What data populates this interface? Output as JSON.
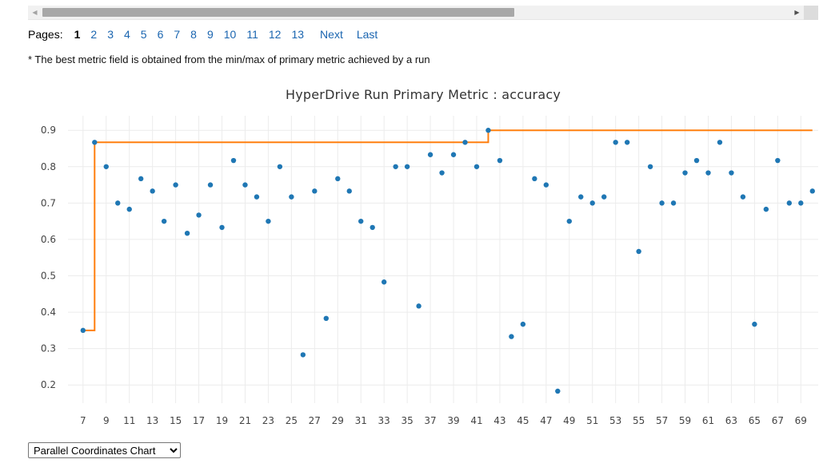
{
  "pager": {
    "label": "Pages:",
    "current": "1",
    "pages": [
      "2",
      "3",
      "4",
      "5",
      "6",
      "7",
      "8",
      "9",
      "10",
      "11",
      "12",
      "13"
    ],
    "next": "Next",
    "last": "Last"
  },
  "note": "* The best metric field is obtained from the min/max of primary metric achieved by a run",
  "chart_select": {
    "value": "Parallel Coordinates Chart",
    "options": [
      "Parallel Coordinates Chart"
    ]
  },
  "colors": {
    "points": "#1f77b4",
    "best_line": "#ff7f0e",
    "link": "#1a65b0"
  },
  "chart_data": {
    "type": "scatter",
    "title": "HyperDrive Run Primary Metric : accuracy",
    "xlabel": "",
    "ylabel": "",
    "xlim": [
      5.7,
      70.5
    ],
    "ylim": [
      0.15,
      0.94
    ],
    "x_ticks": [
      7,
      9,
      11,
      13,
      15,
      17,
      19,
      21,
      23,
      25,
      27,
      29,
      31,
      33,
      35,
      37,
      39,
      41,
      43,
      45,
      47,
      49,
      51,
      53,
      55,
      57,
      59,
      61,
      63,
      65,
      67,
      69
    ],
    "y_ticks": [
      0.2,
      0.3,
      0.4,
      0.5,
      0.6,
      0.7,
      0.8,
      0.9
    ],
    "grid": true,
    "series": [
      {
        "type": "scatter",
        "x": [
          7,
          8,
          9,
          10,
          11,
          12,
          13,
          14,
          15,
          16,
          17,
          18,
          19,
          20,
          21,
          22,
          23,
          24,
          25,
          26,
          27,
          28,
          29,
          30,
          31,
          32,
          33,
          34,
          35,
          36,
          37,
          38,
          39,
          40,
          41,
          42,
          43,
          44,
          45,
          46,
          47,
          48,
          49,
          50,
          51,
          52,
          53,
          54,
          55,
          56,
          57,
          58,
          59,
          60,
          61,
          62,
          63,
          64,
          65,
          66,
          67,
          68,
          69,
          70
        ],
        "y": [
          0.35,
          0.867,
          0.8,
          0.7,
          0.683,
          0.767,
          0.733,
          0.65,
          0.75,
          0.617,
          0.667,
          0.75,
          0.633,
          0.817,
          0.75,
          0.717,
          0.65,
          0.8,
          0.717,
          0.283,
          0.733,
          0.383,
          0.767,
          0.733,
          0.65,
          0.633,
          0.483,
          0.8,
          0.8,
          0.417,
          0.833,
          0.783,
          0.833,
          0.867,
          0.8,
          0.9,
          0.817,
          0.333,
          0.367,
          0.767,
          0.75,
          0.183,
          0.65,
          0.717,
          0.7,
          0.717,
          0.867,
          0.867,
          0.567,
          0.8,
          0.7,
          0.7,
          0.783,
          0.817,
          0.783,
          0.867,
          0.783,
          0.717,
          0.367,
          0.683,
          0.817,
          0.7,
          0.7,
          0.733
        ]
      },
      {
        "type": "step-line",
        "x": [
          7,
          8,
          42,
          70
        ],
        "y": [
          0.35,
          0.867,
          0.9,
          0.9
        ]
      }
    ]
  }
}
